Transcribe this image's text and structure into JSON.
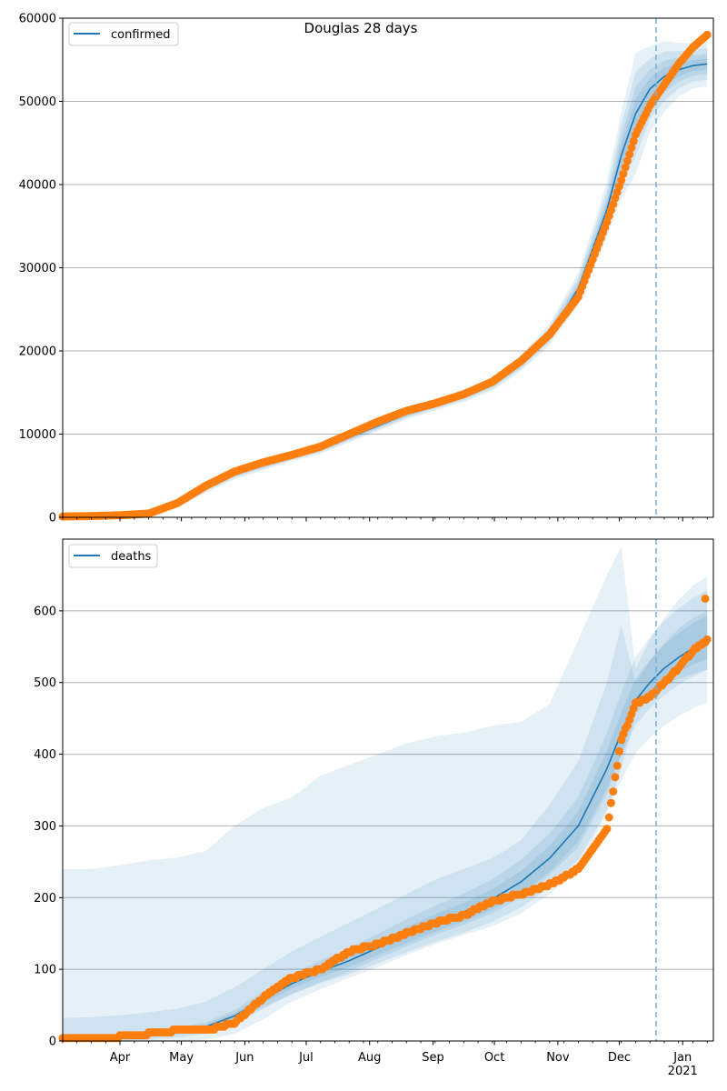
{
  "chart_data": [
    {
      "type": "line",
      "panel": "confirmed",
      "title": "Douglas 28 days",
      "legend": [
        {
          "label": "confirmed",
          "color": "#1f77b4"
        }
      ],
      "legend_position": "upper-left",
      "ylim": [
        0,
        60000
      ],
      "yticks": [
        0,
        10000,
        20000,
        30000,
        40000,
        50000,
        60000
      ],
      "ytick_labels": [
        "0",
        "10000",
        "20000",
        "30000",
        "40000",
        "50000",
        "60000"
      ],
      "grid": "y",
      "xlim": [
        "2020-03-04",
        "2021-01-16"
      ],
      "forecast_start": "2020-12-19",
      "x_days": [
        0,
        14,
        28,
        42,
        56,
        70,
        84,
        98,
        112,
        126,
        140,
        154,
        168,
        182,
        196,
        210,
        224,
        238,
        252,
        266,
        273,
        280,
        287,
        294,
        301,
        308,
        315
      ],
      "fit": [
        50,
        80,
        150,
        400,
        1500,
        3500,
        5200,
        6300,
        7300,
        8200,
        9600,
        11000,
        12400,
        13500,
        14600,
        16000,
        18500,
        22000,
        27500,
        37000,
        43500,
        48500,
        51500,
        53000,
        53800,
        54300,
        54500
      ],
      "band_width_frac": [
        0.6,
        0.5,
        0.4,
        0.3,
        0.2,
        0.15,
        0.12,
        0.1,
        0.08,
        0.07,
        0.06,
        0.06,
        0.05,
        0.05,
        0.05,
        0.05,
        0.05,
        0.06,
        0.07,
        0.09,
        0.12,
        0.15,
        0.1,
        0.08,
        0.06,
        0.05,
        0.05
      ],
      "observed": [
        100,
        150,
        250,
        450,
        1700,
        3800,
        5500,
        6600,
        7500,
        8500,
        10000,
        11500,
        12800,
        13700,
        14800,
        16300,
        18800,
        22000,
        26500,
        35500,
        40500,
        46000,
        49500,
        52000,
        54500,
        56500,
        58000
      ]
    },
    {
      "type": "line",
      "panel": "deaths",
      "legend": [
        {
          "label": "deaths",
          "color": "#1f77b4"
        }
      ],
      "legend_position": "upper-left",
      "ylim": [
        0,
        700
      ],
      "yticks": [
        0,
        100,
        200,
        300,
        400,
        500,
        600
      ],
      "ytick_labels": [
        "0",
        "100",
        "200",
        "300",
        "400",
        "500",
        "600"
      ],
      "grid": "y",
      "xlim": [
        "2020-03-04",
        "2021-01-16"
      ],
      "forecast_start": "2020-12-19",
      "xtick_labels": [
        "Apr",
        "May",
        "Jun",
        "Jul",
        "Aug",
        "Sep",
        "Oct",
        "Nov",
        "Dec",
        "Jan\n2021"
      ],
      "xtick_days": [
        28,
        58,
        89,
        119,
        150,
        181,
        211,
        242,
        272,
        303
      ],
      "x_days": [
        0,
        14,
        28,
        42,
        56,
        70,
        84,
        98,
        112,
        126,
        140,
        154,
        168,
        182,
        196,
        210,
        224,
        238,
        252,
        266,
        273,
        280,
        287,
        294,
        301,
        308,
        315
      ],
      "fit": [
        2,
        3,
        5,
        8,
        13,
        20,
        35,
        58,
        80,
        97,
        112,
        130,
        148,
        165,
        180,
        198,
        222,
        255,
        300,
        380,
        430,
        475,
        500,
        520,
        535,
        548,
        558
      ],
      "outer_upper": [
        240,
        240,
        245,
        252,
        256,
        265,
        300,
        325,
        340,
        370,
        385,
        400,
        415,
        425,
        430,
        440,
        445,
        470,
        560,
        650,
        690,
        520,
        560,
        590,
        615,
        635,
        648
      ],
      "outer_lower": [
        0,
        0,
        0,
        0,
        0,
        2,
        10,
        30,
        55,
        72,
        88,
        103,
        120,
        135,
        148,
        160,
        178,
        205,
        240,
        320,
        380,
        455,
        480,
        495,
        505,
        512,
        518
      ],
      "mid_upper": [
        32,
        33,
        36,
        40,
        45,
        55,
        75,
        100,
        125,
        145,
        165,
        185,
        205,
        225,
        240,
        255,
        280,
        330,
        390,
        500,
        580,
        500,
        530,
        555,
        575,
        590,
        600
      ],
      "mid_lower": [
        0,
        0,
        0,
        2,
        5,
        10,
        22,
        45,
        65,
        82,
        97,
        115,
        132,
        148,
        162,
        178,
        200,
        232,
        270,
        345,
        400,
        462,
        488,
        505,
        515,
        525,
        532
      ],
      "observed": [
        3,
        4,
        6,
        10,
        15,
        15,
        25,
        60,
        88,
        100,
        125,
        135,
        150,
        165,
        175,
        195,
        205,
        218,
        240,
        295,
        420,
        470,
        480,
        500,
        520,
        545,
        560
      ],
      "outlier": {
        "day": 314,
        "value": 617
      }
    }
  ],
  "colors": {
    "fit_line": "#1f77b4",
    "observed": "#ff7f0e",
    "band": "#1f77b4",
    "forecast_line": "#7fb0d6",
    "grid": "#b0b0b0"
  }
}
